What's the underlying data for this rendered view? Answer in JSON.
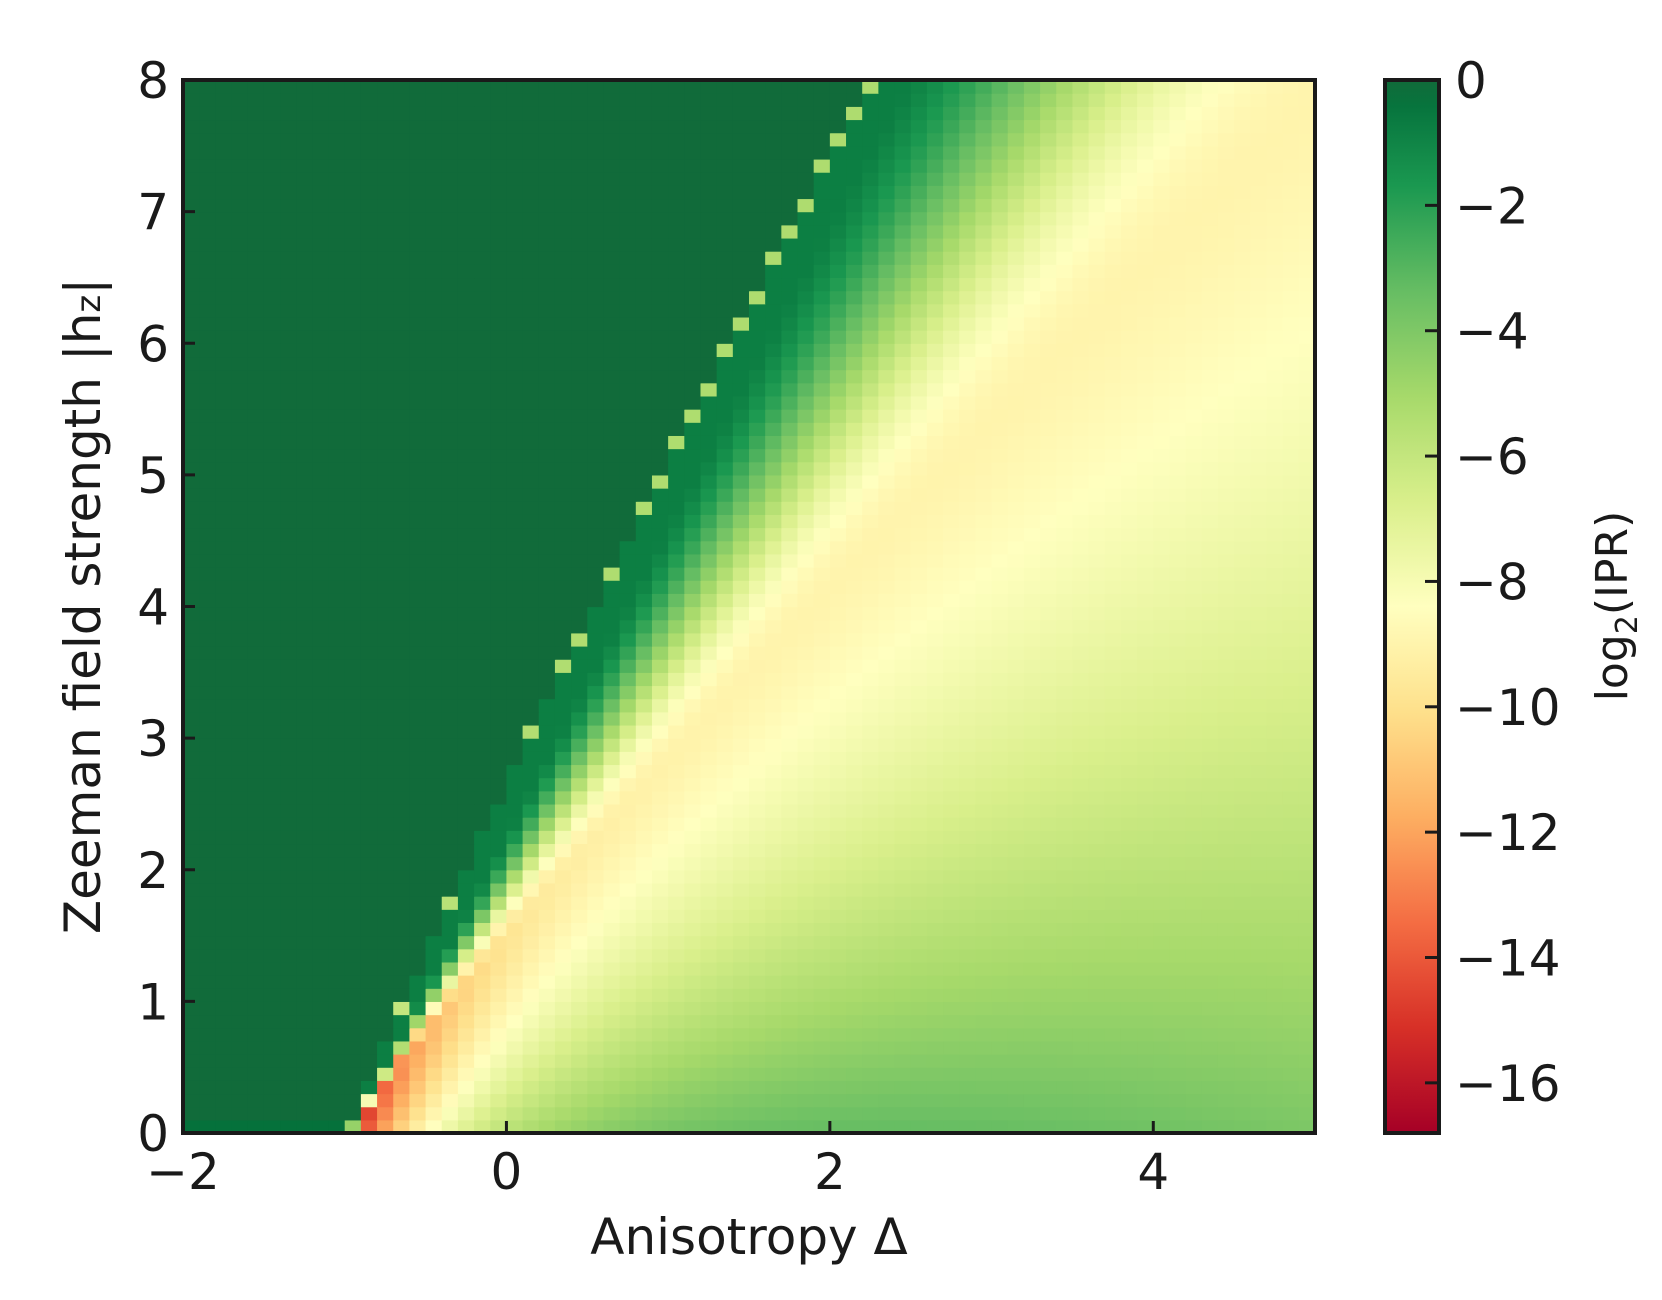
{
  "chart_data": {
    "type": "heatmap",
    "title": "",
    "xlabel": "Anisotropy Δ",
    "ylabel": "Zeeman field strength |h",
    "ylabel_sub": "z",
    "ylabel_tail": "|",
    "xlim": [
      -2,
      5
    ],
    "ylim": [
      0,
      8
    ],
    "xticks": [
      -2,
      0,
      2,
      4
    ],
    "xtick_labels": [
      "−2",
      "0",
      "2",
      "4"
    ],
    "yticks": [
      0,
      1,
      2,
      3,
      4,
      5,
      6,
      7,
      8
    ],
    "ytick_labels": [
      "0",
      "1",
      "2",
      "3",
      "4",
      "5",
      "6",
      "7",
      "8"
    ],
    "grid": false,
    "value_description": "log2(IPR) on a 70 x 80 grid; ~0 in the upper-left region above the boundary h_z ≈ 2.75(Δ+0.97)^0.92, minimum ≈ −16.5 near Δ=-0.9, h_z≈0; gradient through yellow (~-9) to green (~-2) toward lower-right.",
    "grid_shape": {
      "nx": 70,
      "ny": 80
    },
    "colorbar": {
      "label_main": "log",
      "label_sub": "2",
      "label_tail": "(IPR)",
      "range": [
        -16.8,
        0
      ],
      "ticks": [
        0,
        -2,
        -4,
        -6,
        -8,
        -10,
        -12,
        -14,
        -16
      ],
      "tick_labels": [
        "0",
        "−2",
        "−4",
        "−6",
        "−8",
        "−10",
        "−12",
        "−14",
        "−16"
      ],
      "colormap": "RdYlGn",
      "colors": [
        "#a50026",
        "#d73027",
        "#f46d43",
        "#fdae61",
        "#fee08b",
        "#ffffbf",
        "#d9ef8b",
        "#a6d96a",
        "#66bd63",
        "#1a9850",
        "#006837"
      ],
      "top_color": "#116b3a"
    }
  }
}
